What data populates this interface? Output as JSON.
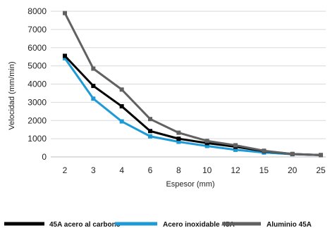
{
  "chart_data": {
    "type": "line",
    "xlabel": "Espesor (mm)",
    "ylabel": "Velocidad (mm/min)",
    "categories": [
      "2",
      "3",
      "4",
      "6",
      "8",
      "10",
      "12",
      "15",
      "20",
      "25"
    ],
    "ylim": [
      0,
      8000
    ],
    "yticks": [
      "0",
      "1000",
      "2000",
      "3000",
      "4000",
      "5000",
      "6000",
      "7000",
      "8000"
    ],
    "grid": true,
    "legend_position": "bottom",
    "series": [
      {
        "name": "45A acero al carbono",
        "color": "#000000",
        "values": [
          5550,
          3900,
          2780,
          1420,
          1000,
          760,
          560,
          320,
          160,
          100
        ]
      },
      {
        "name": "Acero inoxidable 45A",
        "color": "#1e9ad6",
        "values": [
          5420,
          3200,
          1950,
          1130,
          830,
          600,
          390,
          240,
          150,
          100
        ]
      },
      {
        "name": "Aluminio  45A",
        "color": "#616161",
        "values": [
          7900,
          4850,
          3700,
          2080,
          1330,
          880,
          640,
          340,
          160,
          100
        ]
      }
    ]
  }
}
